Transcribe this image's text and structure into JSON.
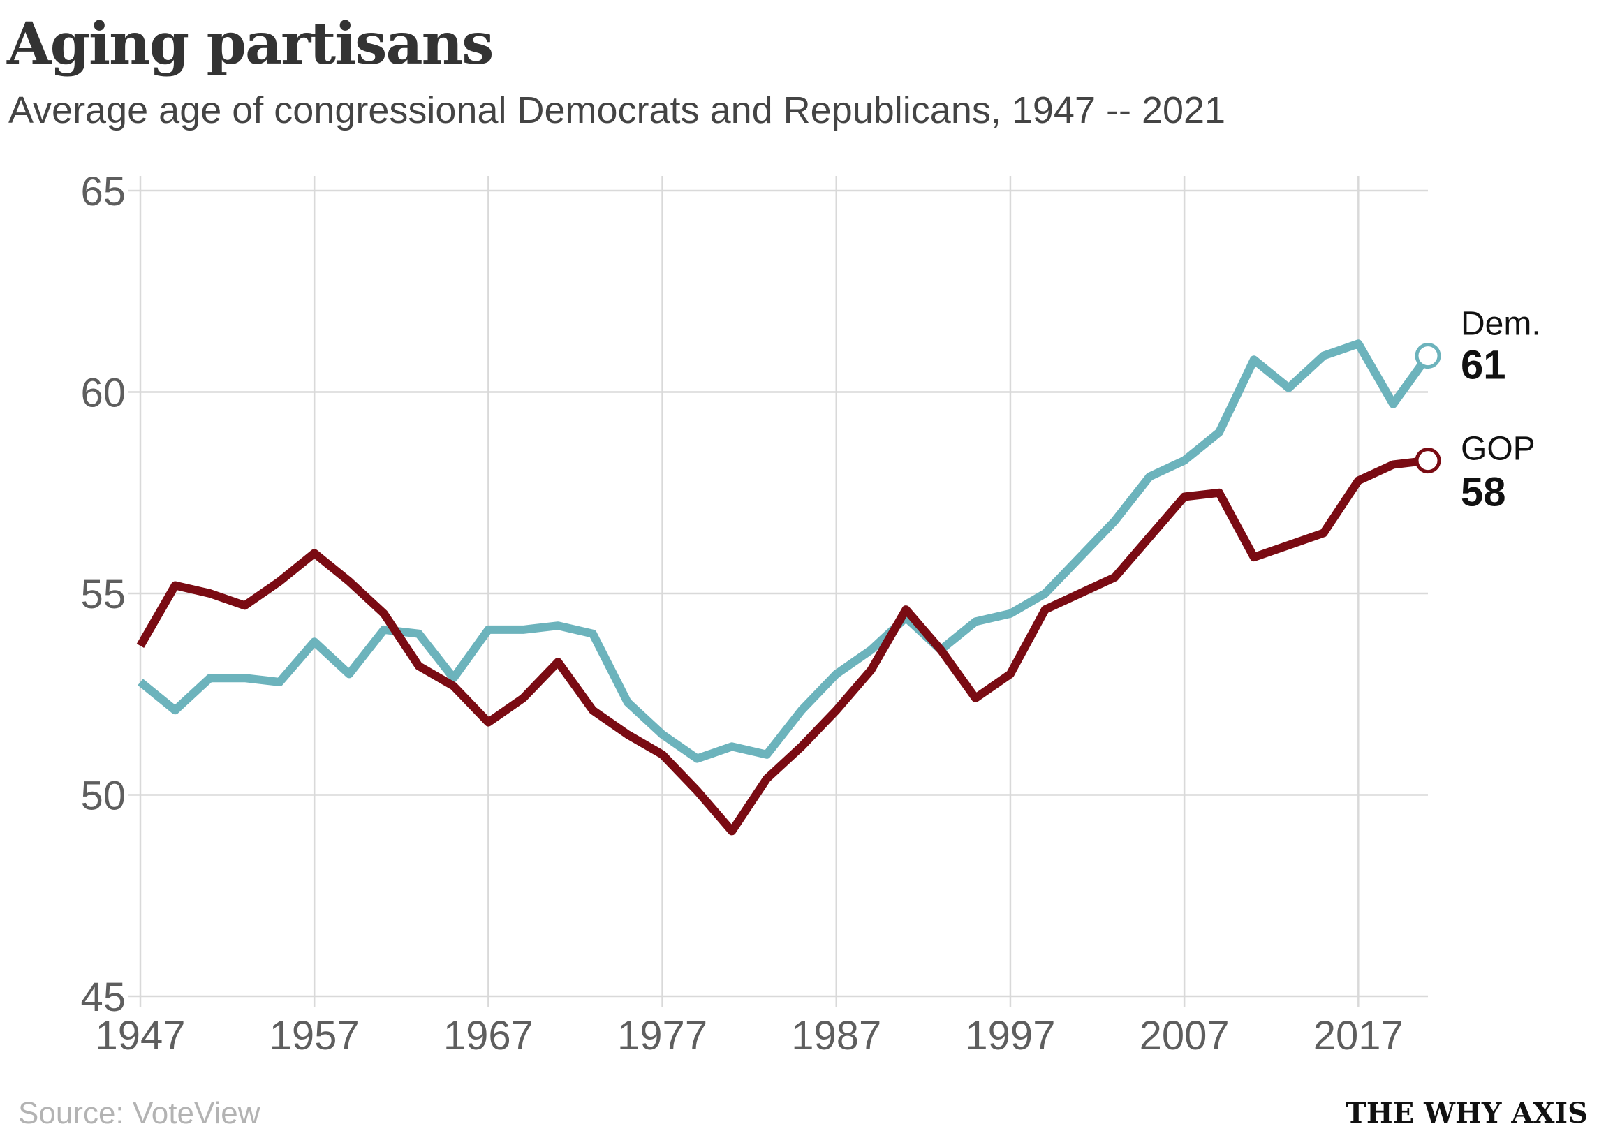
{
  "chart_data": {
    "type": "line",
    "title": "Aging partisans",
    "subtitle": "Average age of congressional Democrats and Republicans, 1947 -- 2021",
    "source": "Source: VoteView",
    "x": [
      1947,
      1949,
      1951,
      1953,
      1955,
      1957,
      1959,
      1961,
      1963,
      1965,
      1967,
      1969,
      1971,
      1973,
      1975,
      1977,
      1979,
      1981,
      1983,
      1985,
      1987,
      1989,
      1991,
      1993,
      1995,
      1997,
      1999,
      2001,
      2003,
      2005,
      2007,
      2009,
      2011,
      2013,
      2015,
      2017,
      2019,
      2021
    ],
    "series": [
      {
        "name": "Dem.",
        "color": "#6cb3bc",
        "end_value": "61",
        "values": [
          52.8,
          52.1,
          52.9,
          52.9,
          52.8,
          53.8,
          53.0,
          54.1,
          54.0,
          52.9,
          54.1,
          54.1,
          54.2,
          54.0,
          52.3,
          51.5,
          50.9,
          51.2,
          51.0,
          52.1,
          53.0,
          53.6,
          54.4,
          53.6,
          54.3,
          54.5,
          55.0,
          55.9,
          56.8,
          57.9,
          58.3,
          59.0,
          60.8,
          60.1,
          60.9,
          61.2,
          59.7,
          60.9
        ]
      },
      {
        "name": "GOP",
        "color": "#7a0b13",
        "end_value": "58",
        "values": [
          53.7,
          55.2,
          55.0,
          54.7,
          55.3,
          56.0,
          55.3,
          54.5,
          53.2,
          52.7,
          51.8,
          52.4,
          53.3,
          52.1,
          51.5,
          51.0,
          50.1,
          49.1,
          50.4,
          51.2,
          52.1,
          53.1,
          54.6,
          53.6,
          52.4,
          53.0,
          54.6,
          55.0,
          55.4,
          56.4,
          57.4,
          57.5,
          55.9,
          56.2,
          56.5,
          57.8,
          58.2,
          58.3
        ]
      }
    ],
    "xlim": [
      1947,
      2021
    ],
    "ylim": [
      45,
      65
    ],
    "x_ticks": [
      1947,
      1957,
      1967,
      1977,
      1987,
      1997,
      2007,
      2017
    ],
    "y_ticks": [
      65,
      60,
      55,
      50,
      45
    ],
    "grid": true,
    "legend": "right"
  },
  "footer": {
    "brand": "THE WHY AXIS"
  }
}
